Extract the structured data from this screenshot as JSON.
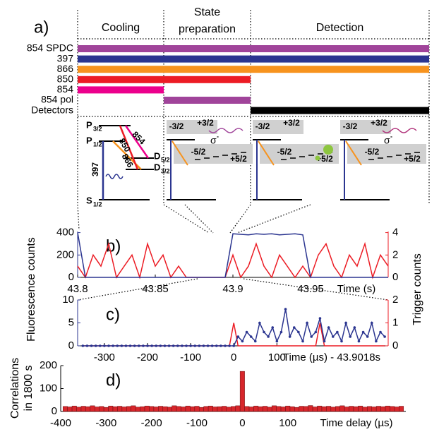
{
  "timing": {
    "label": "a)",
    "phases": [
      [
        "Cooling"
      ],
      [
        "State",
        "preparation"
      ],
      [
        "Detection"
      ]
    ],
    "lasers": [
      {
        "name": "854 SPDC",
        "color": "#a0449a",
        "phases": [
          0,
          1,
          2
        ]
      },
      {
        "name": "397",
        "color": "#2b3590",
        "phases": [
          0,
          1,
          2
        ]
      },
      {
        "name": "866",
        "color": "#f7931e",
        "phases": [
          0,
          1,
          2
        ]
      },
      {
        "name": "850",
        "color": "#ec1c24",
        "phases": [
          0,
          1
        ]
      },
      {
        "name": "854",
        "color": "#ec008c",
        "phases": [
          0
        ]
      },
      {
        "name": "854 pol",
        "color": "#a0449a",
        "phases": [
          1
        ]
      },
      {
        "name": "Detectors",
        "color": "#000000",
        "phases": [
          2
        ]
      }
    ]
  },
  "levels": {
    "cooling": [
      {
        "t": "P",
        "s": "3/2"
      },
      {
        "t": "P",
        "s": "1/2"
      },
      {
        "t": "D",
        "s": "5/2"
      },
      {
        "t": "D",
        "s": "3/2"
      },
      {
        "t": "S",
        "s": "1/2"
      }
    ],
    "transitions": [
      {
        "t": "397",
        "color": "#2b3590"
      },
      {
        "t": "866",
        "color": "#f7931e"
      },
      {
        "t": "850",
        "color": "#ec1c24"
      },
      {
        "t": "854",
        "color": "#ec008c"
      }
    ],
    "sublevels": [
      {
        "labels": [
          "-3/2",
          "+3/2",
          "-5/2",
          "+5/2"
        ],
        "sigma": [
          "σ",
          "-"
        ],
        "color": "#a0449a"
      },
      {
        "labels": [
          "-3/2",
          "+3/2",
          "-5/2",
          "+5/2"
        ]
      },
      {
        "labels": [
          "-3/2",
          "+3/2",
          "-5/2",
          "+5/2"
        ],
        "sigma": [
          "σ",
          "-"
        ],
        "color": "#b0327a"
      }
    ]
  },
  "chart_data": [
    {
      "type": "line",
      "label": "b)",
      "xlabel": "Time (s)",
      "ylabel": "Fluorescence  counts",
      "y2label": "Trigger  counts",
      "xlim": [
        43.8,
        44.0
      ],
      "xticks": [
        43.8,
        43.85,
        43.9,
        43.95
      ],
      "ylim": [
        0,
        410
      ],
      "yticks": [
        0,
        200,
        400
      ],
      "y2lim": [
        0,
        4.1
      ],
      "y2ticks": [
        0,
        2,
        4
      ],
      "x": [
        43.8,
        43.805,
        43.81,
        43.815,
        43.82,
        43.825,
        43.83,
        43.835,
        43.84,
        43.845,
        43.85,
        43.855,
        43.86,
        43.865,
        43.87,
        43.875,
        43.88,
        43.885,
        43.89,
        43.895,
        43.9,
        43.905,
        43.91,
        43.915,
        43.92,
        43.925,
        43.93,
        43.935,
        43.94,
        43.945,
        43.95,
        43.955,
        43.96,
        43.965,
        43.97,
        43.975,
        43.98,
        43.985,
        43.99,
        43.995,
        44.0
      ],
      "series": [
        {
          "color": "#ec1c24",
          "axis": "y2",
          "values": [
            1,
            0,
            2,
            1,
            3,
            0,
            1,
            2,
            0,
            3,
            1,
            2,
            0,
            1,
            0,
            0,
            0,
            0,
            0,
            0,
            2,
            0,
            1,
            3,
            1,
            0,
            2,
            1,
            0,
            1,
            0,
            2,
            3,
            1,
            0,
            2,
            1,
            3,
            0,
            2,
            1
          ]
        },
        {
          "color": "#2b3590",
          "values": [
            400,
            0,
            0,
            0,
            0,
            0,
            0,
            0,
            0,
            0,
            0,
            0,
            0,
            0,
            0,
            0,
            0,
            0,
            0,
            0,
            390,
            385,
            380,
            390,
            385,
            390,
            380,
            385,
            390,
            380,
            0,
            0,
            0,
            0,
            0,
            0,
            0,
            0,
            0,
            0,
            0
          ]
        }
      ]
    },
    {
      "type": "line",
      "label": "c)",
      "xlabel": "Time (µs) - 43.9018s",
      "xlim": [
        -362,
        358
      ],
      "xticks": [
        -300,
        -200,
        -100,
        0,
        100
      ],
      "ylim": [
        0,
        10
      ],
      "yticks": [
        0,
        5,
        10
      ],
      "y2lim": [
        0,
        2
      ],
      "y2ticks": [
        0,
        1,
        2
      ],
      "x": [
        -350,
        -340,
        -330,
        -320,
        -310,
        -300,
        -290,
        -280,
        -270,
        -260,
        -250,
        -240,
        -230,
        -220,
        -210,
        -200,
        -190,
        -180,
        -170,
        -160,
        -150,
        -140,
        -130,
        -120,
        -110,
        -100,
        -90,
        -80,
        -70,
        -60,
        -50,
        -40,
        -30,
        -20,
        -10,
        0,
        10,
        20,
        30,
        40,
        50,
        60,
        70,
        80,
        90,
        100,
        110,
        120,
        130,
        140,
        150,
        160,
        170,
        180,
        190,
        200,
        210,
        220,
        230,
        240,
        250,
        260,
        270,
        280,
        290,
        300,
        310,
        320,
        330,
        340,
        350
      ],
      "series": [
        {
          "color": "#ec1c24",
          "axis": "y2",
          "values": [
            0,
            0,
            0,
            0,
            0,
            0,
            0,
            0,
            0,
            0,
            0,
            0,
            0,
            0,
            0,
            0,
            0,
            0,
            0,
            0,
            0,
            0,
            0,
            0,
            0,
            0,
            0,
            0,
            0,
            0,
            0,
            0,
            0,
            0,
            0,
            1,
            0,
            0,
            0,
            0,
            0,
            0,
            0,
            0,
            0,
            0,
            0,
            0,
            0,
            0,
            0,
            0,
            0,
            0,
            0,
            1,
            0,
            0,
            0,
            0,
            0,
            0,
            0,
            0,
            0,
            0,
            0,
            0,
            0,
            0,
            0
          ]
        },
        {
          "color": "#2b3590",
          "marker": true,
          "values": [
            0,
            0,
            0,
            0,
            0,
            0,
            0,
            0,
            0,
            0,
            0,
            0,
            0,
            0,
            0,
            0,
            0,
            0,
            0,
            0,
            0,
            0,
            0,
            0,
            0,
            0,
            0,
            0,
            0,
            0,
            0,
            0,
            0,
            0,
            0,
            0,
            2,
            1,
            3,
            2,
            1,
            5,
            3,
            2,
            4,
            1,
            3,
            8,
            2,
            4,
            3,
            1,
            5,
            2,
            3,
            6,
            1,
            4,
            2,
            3,
            1,
            5,
            2,
            4,
            1,
            3,
            2,
            5,
            1,
            3,
            2
          ]
        }
      ]
    },
    {
      "type": "histogram",
      "label": "d)",
      "xlabel": "Time delay (µs)",
      "ylabel": [
        "Correlations",
        "in 1800 s"
      ],
      "xlim": [
        -400,
        360
      ],
      "xticks": [
        -400,
        -300,
        -200,
        -100,
        0,
        100
      ],
      "ylim": [
        0,
        200
      ],
      "yticks": [
        0,
        100,
        200
      ],
      "color": "#d7262b",
      "bins": [
        -395,
        -385,
        -375,
        -365,
        -355,
        -345,
        -335,
        -325,
        -315,
        -305,
        -295,
        -285,
        -275,
        -265,
        -255,
        -245,
        -235,
        -225,
        -215,
        -205,
        -195,
        -185,
        -175,
        -165,
        -155,
        -145,
        -135,
        -125,
        -115,
        -105,
        -95,
        -85,
        -75,
        -65,
        -55,
        -45,
        -35,
        -25,
        -15,
        -5,
        5,
        15,
        25,
        35,
        45,
        55,
        65,
        75,
        85,
        95,
        105,
        115,
        125,
        135,
        145,
        155,
        165,
        175,
        185,
        195,
        205,
        215,
        225,
        235,
        245,
        255,
        265,
        275,
        285,
        295,
        305,
        315,
        325,
        335,
        345,
        355
      ],
      "values": [
        22,
        20,
        24,
        19,
        23,
        21,
        25,
        20,
        22,
        18,
        24,
        21,
        23,
        20,
        22,
        25,
        19,
        21,
        24,
        22,
        20,
        23,
        21,
        19,
        25,
        22,
        20,
        24,
        21,
        23,
        18,
        22,
        24,
        20,
        21,
        23,
        19,
        22,
        25,
        175,
        22,
        20,
        24,
        21,
        23,
        19,
        25,
        22,
        20,
        24,
        21,
        18,
        23,
        22,
        26,
        20,
        24,
        21,
        23,
        19,
        22,
        25,
        20,
        23,
        21,
        24,
        19,
        22,
        20,
        23,
        21,
        24,
        22,
        20,
        23
      ]
    }
  ]
}
